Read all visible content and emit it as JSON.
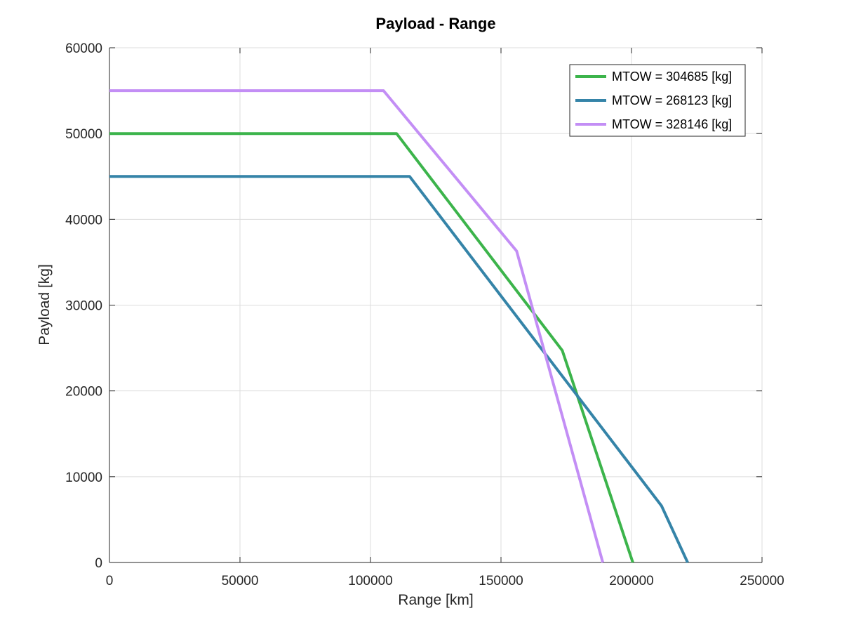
{
  "chart_data": {
    "type": "line",
    "title": "Payload - Range",
    "xlabel": "Range [km]",
    "ylabel": "Payload [kg]",
    "xlim": [
      0,
      250000
    ],
    "ylim": [
      0,
      60000
    ],
    "xticks": [
      0,
      50000,
      100000,
      150000,
      200000,
      250000
    ],
    "yticks": [
      0,
      10000,
      20000,
      30000,
      40000,
      50000,
      60000
    ],
    "grid": true,
    "legend_position": "top-right",
    "series": [
      {
        "name": "MTOW = 304685 [kg]",
        "color": "#3cb44b",
        "x": [
          0,
          110000,
          173500,
          200500
        ],
        "y": [
          50000,
          50000,
          24700,
          0
        ]
      },
      {
        "name": "MTOW = 268123 [kg]",
        "color": "#3584a8",
        "x": [
          0,
          115000,
          211500,
          221500
        ],
        "y": [
          45000,
          45000,
          6600,
          0
        ]
      },
      {
        "name": "MTOW = 328146 [kg]",
        "color": "#c38ef5",
        "x": [
          0,
          105000,
          156000,
          189000
        ],
        "y": [
          55000,
          55000,
          36300,
          0
        ]
      }
    ]
  }
}
